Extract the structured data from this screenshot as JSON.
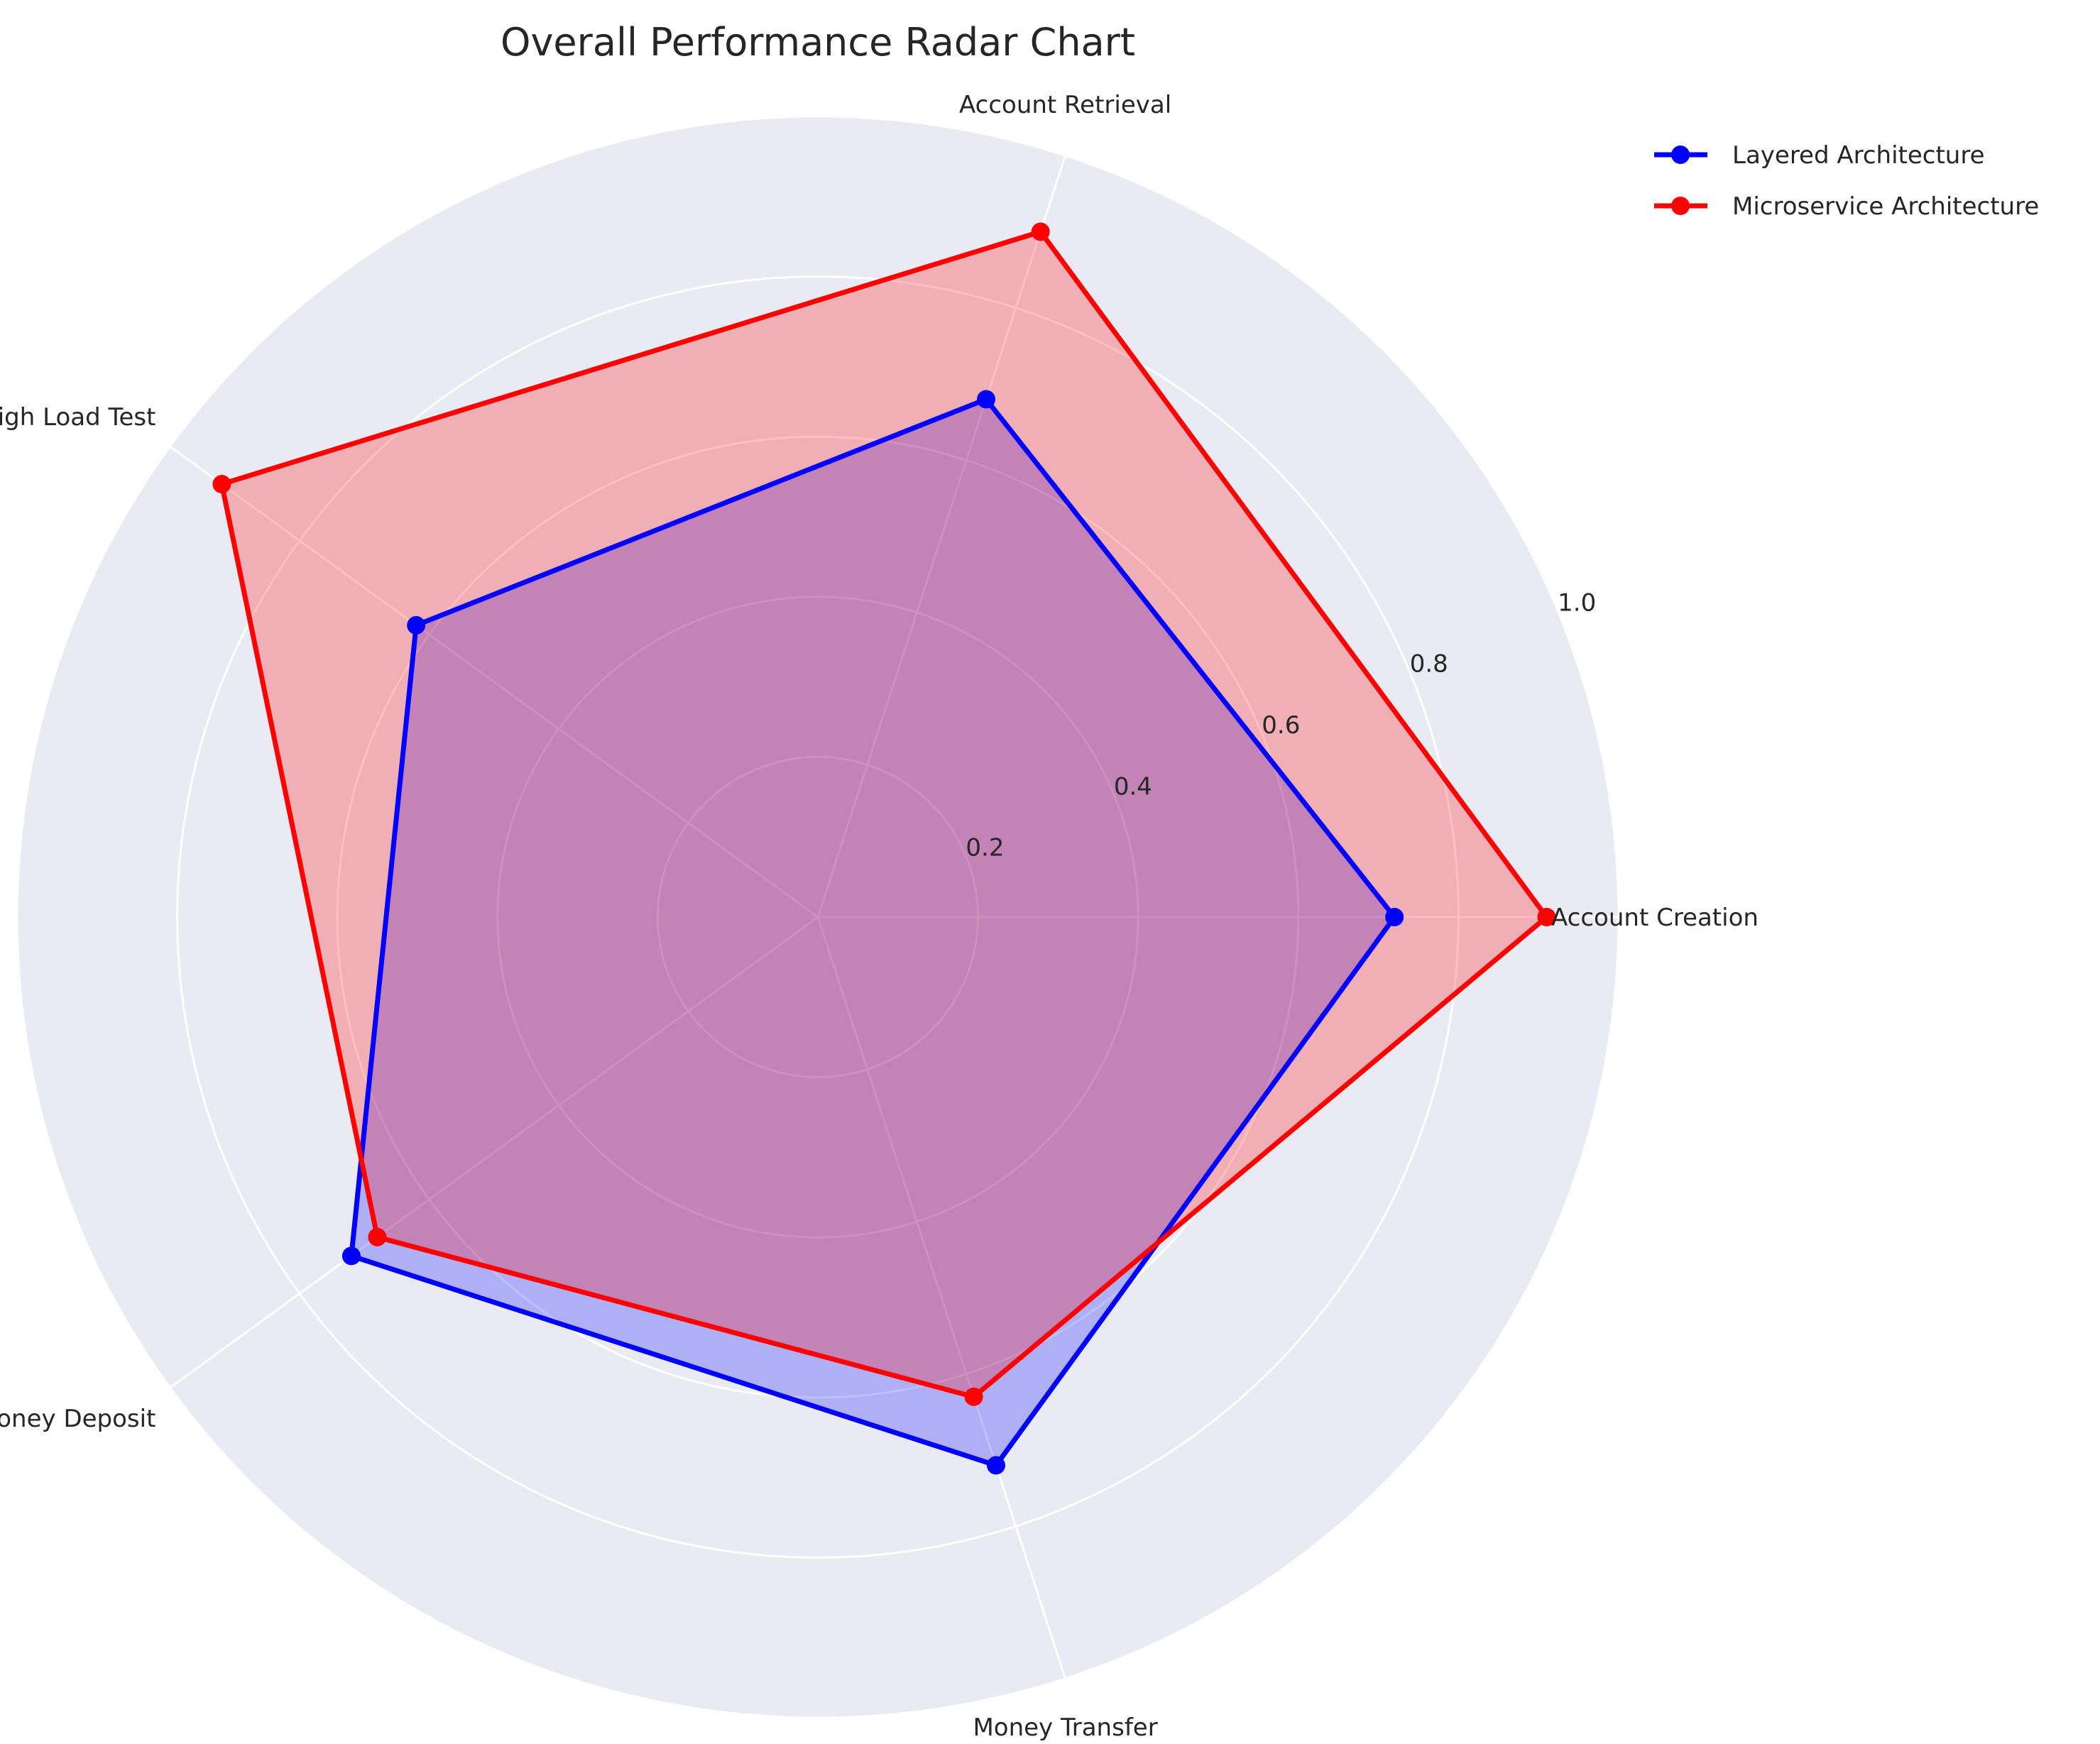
{
  "chart_data": {
    "type": "radar",
    "title": "Overall Performance Radar Chart",
    "categories": [
      "Account Creation",
      "Account Retrieval",
      "High Load Test",
      "Money Deposit",
      "Money Transfer"
    ],
    "rticks": [
      0.2,
      0.4,
      0.6,
      0.8,
      1.0
    ],
    "rtick_labels": [
      "0.2",
      "0.4",
      "0.6",
      "0.8",
      "1.0"
    ],
    "rlim": [
      0,
      1.0
    ],
    "grid": true,
    "legend_position": "top-right outside",
    "background_color": "#eaeaf2",
    "series": [
      {
        "name": "Layered Architecture",
        "color": "#0000ff",
        "values": [
          0.72,
          0.68,
          0.62,
          0.72,
          0.72
        ]
      },
      {
        "name": "Microservice Architecture",
        "color": "#ff0000",
        "values": [
          0.91,
          0.9,
          0.92,
          0.68,
          0.63
        ]
      }
    ]
  }
}
